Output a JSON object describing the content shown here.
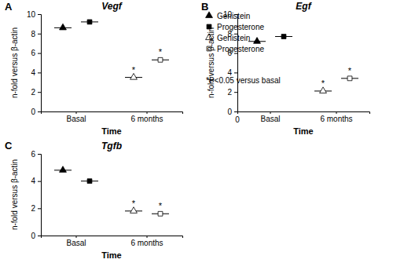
{
  "chart_data": [
    {
      "type": "scatter",
      "panel": "A",
      "title": "Vegf",
      "x_label": "Time",
      "y_label": "n-fold versus β-actin",
      "categories": [
        "Basal",
        "6 months"
      ],
      "ylim": [
        0,
        10
      ],
      "yticks": [
        0,
        2,
        4,
        6,
        8,
        10
      ],
      "grid": false,
      "color": "#000000",
      "legend": "right",
      "series": [
        {
          "name": "Genistein",
          "marker": "triangle-filled",
          "values": [
            8.6,
            null
          ],
          "annotations": [
            null,
            null
          ]
        },
        {
          "name": "Progesterone",
          "marker": "square-filled",
          "values": [
            9.2,
            null
          ],
          "annotations": [
            null,
            null
          ]
        },
        {
          "name": "Genistein",
          "marker": "triangle-open",
          "values": [
            null,
            3.5
          ],
          "annotations": [
            null,
            "*"
          ]
        },
        {
          "name": "Progesterone",
          "marker": "square-open",
          "values": [
            null,
            5.3
          ],
          "annotations": [
            null,
            "*"
          ]
        }
      ],
      "annotations": [
        {
          "text": "*P<0.05 versus basal",
          "anchor": "legend"
        }
      ]
    },
    {
      "type": "scatter",
      "panel": "B",
      "title": "Egf",
      "x_label": "Time",
      "y_label": "n-fold versus β-actin",
      "categories": [
        "Basal",
        "6 months"
      ],
      "ylim": [
        0,
        10
      ],
      "yticks": [
        0,
        2,
        4,
        6,
        8,
        10
      ],
      "grid": false,
      "color": "#000000",
      "series": [
        {
          "marker": "triangle-filled",
          "values": [
            7.2,
            null
          ],
          "annotations": [
            null,
            null
          ]
        },
        {
          "marker": "square-filled",
          "values": [
            7.7,
            null
          ],
          "annotations": [
            null,
            null
          ]
        },
        {
          "marker": "triangle-open",
          "values": [
            null,
            2.1
          ],
          "annotations": [
            null,
            "*"
          ]
        },
        {
          "marker": "square-open",
          "values": [
            null,
            3.4
          ],
          "annotations": [
            null,
            "*"
          ]
        }
      ],
      "annotations": [
        {
          "text": "0",
          "anchor": "x-origin"
        }
      ]
    },
    {
      "type": "scatter",
      "panel": "C",
      "title": "Tgfb",
      "x_label": "Time",
      "y_label": "n-fold versus β-actin",
      "categories": [
        "Basal",
        "6 months"
      ],
      "ylim": [
        0,
        6
      ],
      "yticks": [
        0,
        2,
        4,
        6
      ],
      "grid": false,
      "color": "#000000",
      "series": [
        {
          "marker": "triangle-filled",
          "values": [
            4.8,
            null
          ],
          "annotations": [
            null,
            null
          ]
        },
        {
          "marker": "square-filled",
          "values": [
            4.0,
            null
          ],
          "annotations": [
            null,
            null
          ]
        },
        {
          "marker": "triangle-open",
          "values": [
            null,
            1.8
          ],
          "annotations": [
            null,
            "*"
          ]
        },
        {
          "marker": "square-open",
          "values": [
            null,
            1.6
          ],
          "annotations": [
            null,
            "*"
          ]
        }
      ]
    }
  ]
}
